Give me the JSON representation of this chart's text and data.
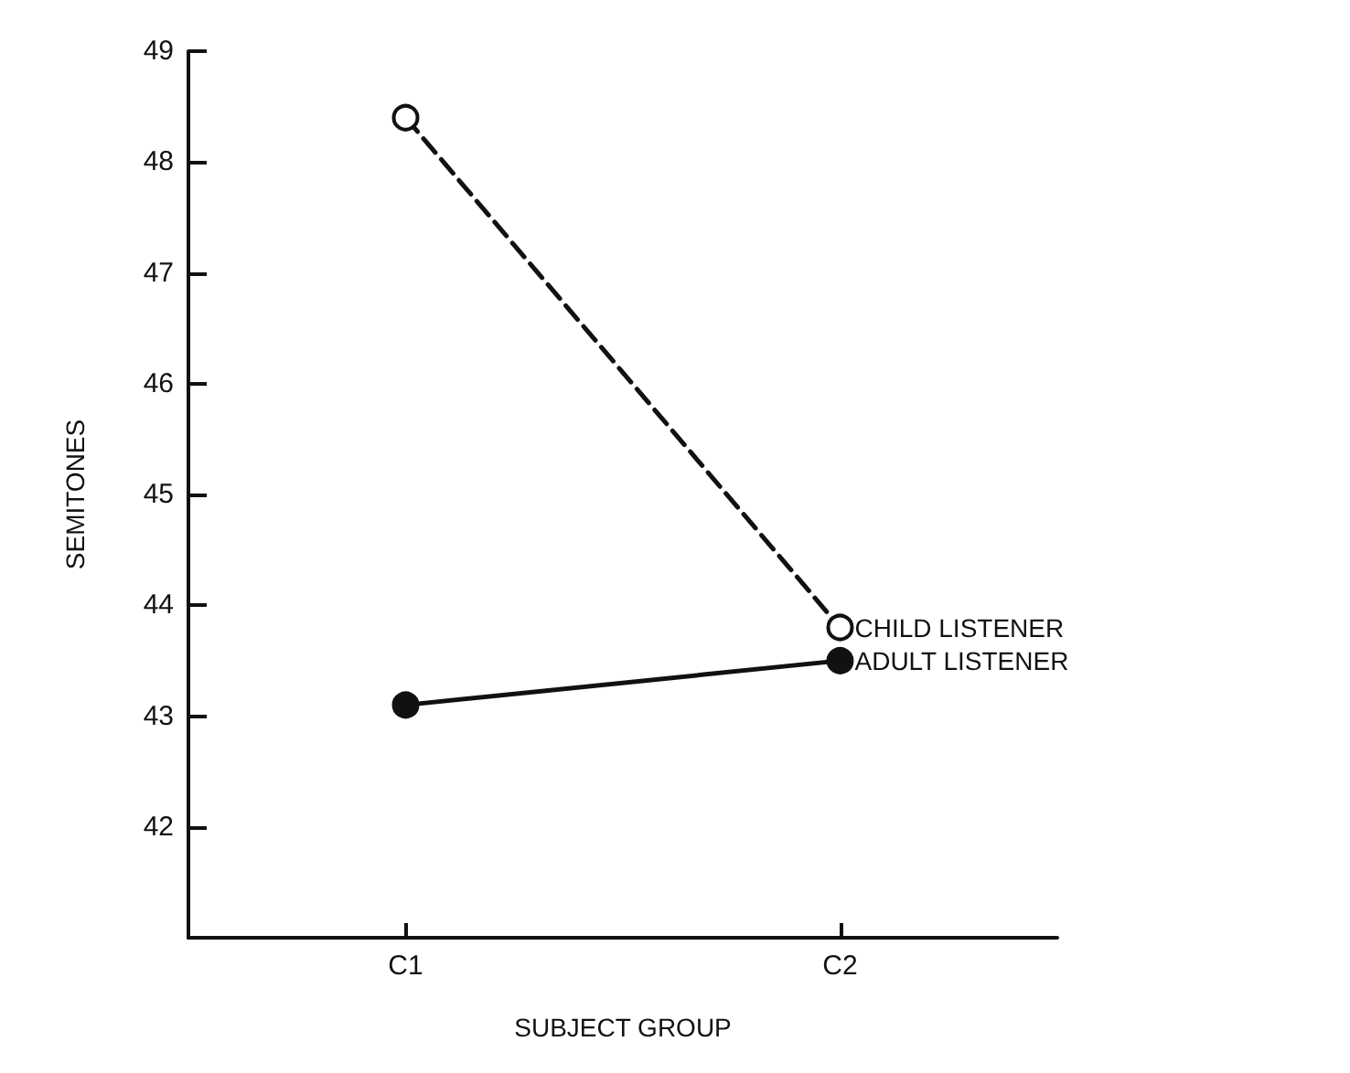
{
  "chart_data": {
    "type": "line",
    "xlabel": "SUBJECT GROUP",
    "ylabel": "SEMITONES",
    "categories": [
      "C1",
      "C2"
    ],
    "series": [
      {
        "name": "CHILD LISTENER",
        "color": "#111111",
        "values": [
          48.4,
          43.8
        ],
        "line_style": "dashed"
      },
      {
        "name": "ADULT LISTENER",
        "color": "#111111",
        "values": [
          43.1,
          43.5
        ],
        "line_style": "solid"
      }
    ],
    "ylim": [
      41,
      49
    ],
    "yticks": [
      42,
      43,
      44,
      45,
      46,
      47,
      48,
      49
    ],
    "marker": "circle",
    "grid": false,
    "legend": false
  }
}
